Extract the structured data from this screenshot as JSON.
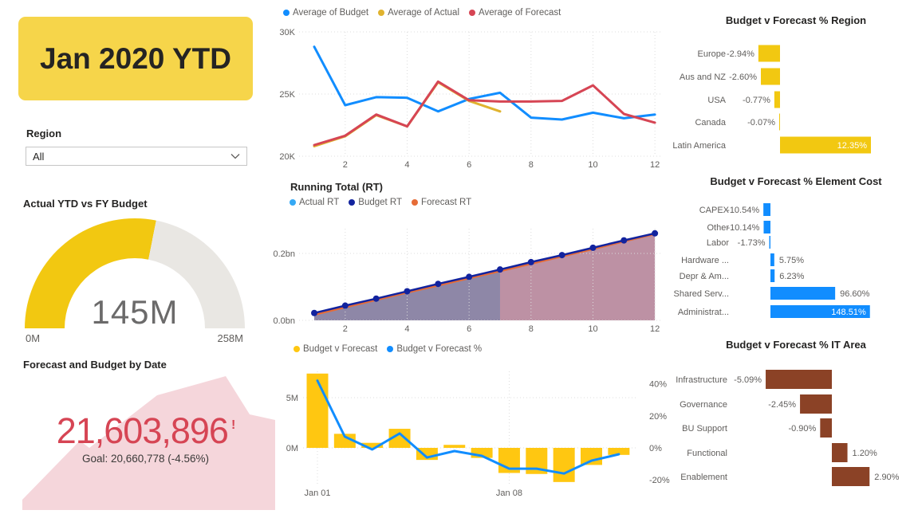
{
  "colors": {
    "yellow": "#F2C811",
    "card_yellow": "#F6D54A",
    "bar_yellow": "#FFC711",
    "blue": "#118DFF",
    "light_blue": "#35A9F5",
    "navy": "#12239E",
    "orange": "#E66C37",
    "red": "#D64554",
    "actual_yellow": "#E0B32F",
    "brown": "#8B4226",
    "pink_area": "#F5D6DB",
    "rt_fill_left": "#8E87A7",
    "rt_fill_right": "#BD91A4",
    "gauge_track": "#E9E7E3",
    "grid": "#DCDCDC",
    "axis_text": "#605E5C"
  },
  "header_card": {
    "label": "Jan 2020 YTD"
  },
  "region_filter": {
    "label": "Region",
    "value": "All"
  },
  "gauge": {
    "title": "Actual YTD vs FY Budget",
    "value": 145,
    "max": 258,
    "value_label": "145M",
    "min_label": "0M",
    "max_label": "258M"
  },
  "kpi": {
    "title": "Forecast and Budget by Date",
    "value": "21,603,896",
    "alert": "!",
    "goal": "Goal: 20,660,778 (-4.56%)"
  },
  "chart_data": [
    {
      "id": "avg",
      "type": "line",
      "x": [
        1,
        2,
        3,
        4,
        5,
        6,
        7,
        8,
        9,
        10,
        11,
        12
      ],
      "x_ticks": [
        2,
        4,
        6,
        8,
        10,
        12
      ],
      "y_ticks": [
        "30K",
        "25K",
        "20K"
      ],
      "ylim_k": [
        20,
        30
      ],
      "series": [
        {
          "name": "Average of Budget",
          "color": "#118DFF",
          "values_k": [
            28.8,
            24.1,
            24.75,
            24.7,
            23.6,
            24.6,
            25.1,
            23.1,
            22.95,
            23.5,
            23.05,
            23.35
          ]
        },
        {
          "name": "Average of Actual",
          "color": "#E0B32F",
          "values_k": [
            20.8,
            21.6,
            23.3,
            22.4,
            25.95,
            24.45,
            23.6
          ]
        },
        {
          "name": "Average of Forecast",
          "color": "#D64554",
          "values_k": [
            20.9,
            21.65,
            23.35,
            22.4,
            26.0,
            24.5,
            24.4,
            24.4,
            24.45,
            25.7,
            23.4,
            22.7
          ]
        }
      ]
    },
    {
      "id": "rt",
      "type": "area-line",
      "title": "Running Total (RT)",
      "x": [
        1,
        2,
        3,
        4,
        5,
        6,
        7,
        8,
        9,
        10,
        11,
        12
      ],
      "x_ticks": [
        2,
        4,
        6,
        8,
        10,
        12
      ],
      "y_ticks": [
        "0.2bn",
        "0.0bn"
      ],
      "actual_through_x": 7,
      "series": [
        {
          "name": "Actual RT",
          "color": "#35A9F5",
          "values_bn": [
            0.021,
            0.043,
            0.064,
            0.086,
            0.107,
            0.128,
            0.15
          ]
        },
        {
          "name": "Budget RT",
          "color": "#12239E",
          "values_bn": [
            0.022,
            0.044,
            0.065,
            0.087,
            0.109,
            0.13,
            0.152,
            0.174,
            0.195,
            0.217,
            0.239,
            0.26
          ]
        },
        {
          "name": "Forecast RT",
          "color": "#E66C37",
          "values_bn": [
            0.017,
            0.039,
            0.061,
            0.083,
            0.104,
            0.126,
            0.147,
            0.169,
            0.191,
            0.213,
            0.236,
            0.258
          ]
        }
      ]
    },
    {
      "id": "combo",
      "type": "bar-line",
      "x_labels": [
        "Jan 01",
        "Jan 08"
      ],
      "left_ticks": [
        "5M",
        "0M"
      ],
      "right_ticks": [
        "40%",
        "20%",
        "0%",
        "-20%"
      ],
      "bars": {
        "name": "Budget v Forecast",
        "color": "#FFC711",
        "values_m": [
          7.4,
          1.4,
          0.5,
          1.9,
          -1.2,
          0.3,
          -1.0,
          -2.5,
          -2.6,
          -3.4,
          -1.7,
          -0.7
        ]
      },
      "line": {
        "name": "Budget v Forecast %",
        "color": "#118DFF",
        "values_pct": [
          42,
          7,
          -1,
          9,
          -6,
          -2,
          -5,
          -13,
          -13,
          -16,
          -8,
          -4
        ]
      }
    },
    {
      "id": "region",
      "type": "hbar",
      "title": "Budget v Forecast % Region",
      "color": "#F2C811",
      "items": [
        {
          "label": "Europe",
          "value": -2.94,
          "text": "-2.94%"
        },
        {
          "label": "Aus and NZ",
          "value": -2.6,
          "text": "-2.60%"
        },
        {
          "label": "USA",
          "value": -0.77,
          "text": "-0.77%"
        },
        {
          "label": "Canada",
          "value": -0.07,
          "text": "-0.07%"
        },
        {
          "label": "Latin America",
          "value": 12.35,
          "text": "12.35%",
          "inside": true
        }
      ]
    },
    {
      "id": "element",
      "type": "hbar",
      "title": "Budget v Forecast % Element Cost",
      "color": "#118DFF",
      "items": [
        {
          "label": "CAPEX",
          "value": -10.54,
          "text": "-10.54%"
        },
        {
          "label": "Other",
          "value": -10.14,
          "text": "-10.14%"
        },
        {
          "label": "Labor",
          "value": -1.73,
          "text": "-1.73%"
        },
        {
          "label": "Hardware ...",
          "value": 5.75,
          "text": "5.75%"
        },
        {
          "label": "Depr & Am...",
          "value": 6.23,
          "text": "6.23%"
        },
        {
          "label": "Shared Serv...",
          "value": 96.6,
          "text": "96.60%"
        },
        {
          "label": "Administrat...",
          "value": 148.51,
          "text": "148.51%",
          "inside": true
        }
      ]
    },
    {
      "id": "itarea",
      "type": "hbar",
      "title": "Budget v Forecast % IT Area",
      "color": "#8B4226",
      "items": [
        {
          "label": "Infrastructure",
          "value": -5.09,
          "text": "-5.09%"
        },
        {
          "label": "Governance",
          "value": -2.45,
          "text": "-2.45%"
        },
        {
          "label": "BU Support",
          "value": -0.9,
          "text": "-0.90%"
        },
        {
          "label": "Functional",
          "value": 1.2,
          "text": "1.20%"
        },
        {
          "label": "Enablement",
          "value": 2.9,
          "text": "2.90%"
        }
      ]
    }
  ]
}
